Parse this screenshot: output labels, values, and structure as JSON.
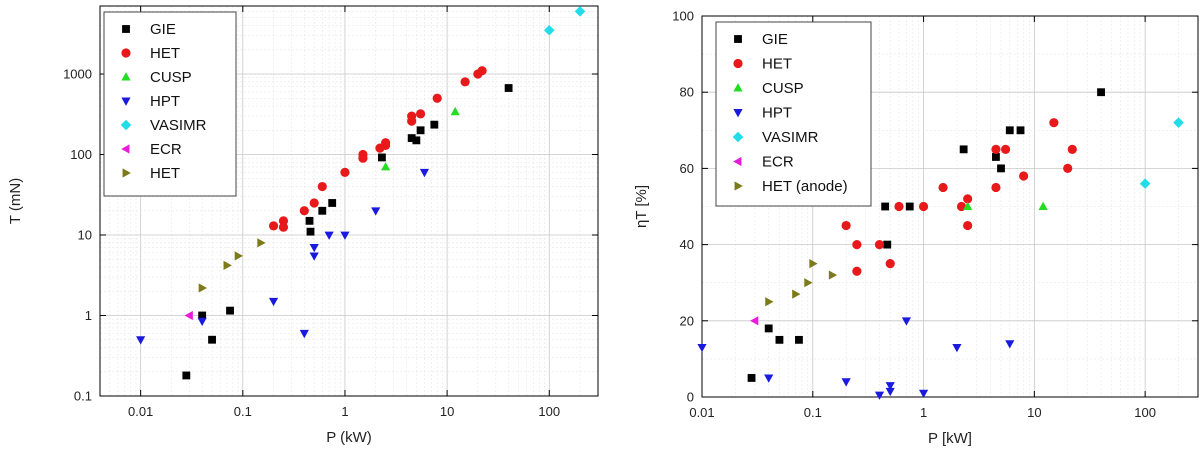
{
  "chart_data": [
    {
      "type": "scatter",
      "x_scale": "log",
      "y_scale": "log",
      "xlabel": "P (kW)",
      "ylabel": "T (mN)",
      "xlim": [
        0.004,
        300
      ],
      "ylim": [
        0.1,
        7000
      ],
      "x_ticks": [
        {
          "v": 0.01,
          "label": "0.01"
        },
        {
          "v": 0.1,
          "label": "0.1"
        },
        {
          "v": 1,
          "label": "1"
        },
        {
          "v": 10,
          "label": "10"
        },
        {
          "v": 100,
          "label": "100"
        }
      ],
      "y_ticks": [
        {
          "v": 0.1,
          "label": "0.1"
        },
        {
          "v": 1,
          "label": "1"
        },
        {
          "v": 10,
          "label": "10"
        },
        {
          "v": 100,
          "label": "100"
        },
        {
          "v": 1000,
          "label": "1000"
        }
      ],
      "legend_position": "top-left",
      "series": [
        {
          "name": "GIE",
          "marker": "square",
          "color": "#000000",
          "points": [
            [
              0.028,
              0.18
            ],
            [
              0.04,
              1.0
            ],
            [
              0.05,
              0.5
            ],
            [
              0.075,
              1.15
            ],
            [
              0.45,
              15
            ],
            [
              0.46,
              11
            ],
            [
              0.6,
              20
            ],
            [
              0.75,
              25
            ],
            [
              2.3,
              92
            ],
            [
              4.5,
              160
            ],
            [
              5,
              150
            ],
            [
              5.5,
              200
            ],
            [
              7.5,
              235
            ],
            [
              40,
              670
            ]
          ]
        },
        {
          "name": "HET",
          "marker": "circle",
          "color": "#e8191b",
          "points": [
            [
              0.2,
              13
            ],
            [
              0.25,
              15
            ],
            [
              0.25,
              12.5
            ],
            [
              0.4,
              20
            ],
            [
              0.5,
              25
            ],
            [
              0.6,
              40
            ],
            [
              1,
              60
            ],
            [
              1.5,
              90
            ],
            [
              1.5,
              100
            ],
            [
              2.2,
              120
            ],
            [
              2.5,
              140
            ],
            [
              2.5,
              130
            ],
            [
              4.5,
              260
            ],
            [
              4.5,
              300
            ],
            [
              5.5,
              320
            ],
            [
              8,
              500
            ],
            [
              15,
              800
            ],
            [
              20,
              1000
            ],
            [
              22,
              1100
            ]
          ]
        },
        {
          "name": "CUSP",
          "marker": "triangle-up",
          "color": "#22dd22",
          "points": [
            [
              2.5,
              70
            ],
            [
              12,
              340
            ]
          ]
        },
        {
          "name": "HPT",
          "marker": "triangle-down",
          "color": "#1a1adf",
          "points": [
            [
              0.01,
              0.5
            ],
            [
              0.04,
              0.85
            ],
            [
              0.2,
              1.5
            ],
            [
              0.4,
              0.6
            ],
            [
              0.5,
              5.5
            ],
            [
              0.5,
              7
            ],
            [
              0.7,
              10
            ],
            [
              1,
              10
            ],
            [
              2,
              20
            ],
            [
              6,
              60
            ]
          ]
        },
        {
          "name": "VASIMR",
          "marker": "diamond",
          "color": "#22dde8",
          "points": [
            [
              100,
              3500
            ],
            [
              200,
              6000
            ]
          ]
        },
        {
          "name": "ECR",
          "marker": "triangle-left",
          "color": "#e81cd8",
          "points": [
            [
              0.03,
              1.0
            ]
          ]
        },
        {
          "name": "HET",
          "marker": "triangle-right",
          "color": "#7d7a1a",
          "points": [
            [
              0.04,
              2.2
            ],
            [
              0.07,
              4.2
            ],
            [
              0.09,
              5.5
            ],
            [
              0.15,
              8
            ]
          ]
        }
      ]
    },
    {
      "type": "scatter",
      "x_scale": "log",
      "y_scale": "linear",
      "xlabel": "P [kW]",
      "ylabel": "ηT [%]",
      "xlim": [
        0.01,
        300
      ],
      "ylim": [
        0,
        100
      ],
      "x_ticks": [
        {
          "v": 0.01,
          "label": "0.01"
        },
        {
          "v": 0.1,
          "label": "0.1"
        },
        {
          "v": 1,
          "label": "1"
        },
        {
          "v": 10,
          "label": "10"
        },
        {
          "v": 100,
          "label": "100"
        }
      ],
      "y_ticks": [
        {
          "v": 0,
          "label": "0"
        },
        {
          "v": 20,
          "label": "20"
        },
        {
          "v": 40,
          "label": "40"
        },
        {
          "v": 60,
          "label": "60"
        },
        {
          "v": 80,
          "label": "80"
        },
        {
          "v": 100,
          "label": "100"
        }
      ],
      "legend_position": "top-left",
      "series": [
        {
          "name": "GIE",
          "marker": "square",
          "color": "#000000",
          "points": [
            [
              0.028,
              5
            ],
            [
              0.04,
              18
            ],
            [
              0.05,
              15
            ],
            [
              0.075,
              15
            ],
            [
              0.45,
              50
            ],
            [
              0.47,
              40
            ],
            [
              0.75,
              50
            ],
            [
              2.3,
              65
            ],
            [
              4.5,
              63
            ],
            [
              5,
              60
            ],
            [
              6,
              70
            ],
            [
              7.5,
              70
            ],
            [
              40,
              80
            ]
          ]
        },
        {
          "name": "HET",
          "marker": "circle",
          "color": "#e8191b",
          "points": [
            [
              0.2,
              45
            ],
            [
              0.25,
              40
            ],
            [
              0.25,
              33
            ],
            [
              0.4,
              40
            ],
            [
              0.5,
              35
            ],
            [
              0.6,
              50
            ],
            [
              1,
              50
            ],
            [
              1.5,
              55
            ],
            [
              2.2,
              50
            ],
            [
              2.5,
              52
            ],
            [
              2.5,
              45
            ],
            [
              4.5,
              55
            ],
            [
              4.5,
              65
            ],
            [
              5.5,
              65
            ],
            [
              8,
              58
            ],
            [
              15,
              72
            ],
            [
              20,
              60
            ],
            [
              22,
              65
            ]
          ]
        },
        {
          "name": "CUSP",
          "marker": "triangle-up",
          "color": "#22dd22",
          "points": [
            [
              2.5,
              50
            ],
            [
              12,
              50
            ]
          ]
        },
        {
          "name": "HPT",
          "marker": "triangle-down",
          "color": "#1a1adf",
          "points": [
            [
              0.01,
              13
            ],
            [
              0.04,
              5
            ],
            [
              0.2,
              4
            ],
            [
              0.4,
              0.5
            ],
            [
              0.5,
              3
            ],
            [
              0.5,
              1.5
            ],
            [
              0.7,
              20
            ],
            [
              1,
              1
            ],
            [
              2,
              13
            ],
            [
              6,
              14
            ]
          ]
        },
        {
          "name": "VASIMR",
          "marker": "diamond",
          "color": "#22dde8",
          "points": [
            [
              100,
              56
            ],
            [
              200,
              72
            ]
          ]
        },
        {
          "name": "ECR",
          "marker": "triangle-left",
          "color": "#e81cd8",
          "points": [
            [
              0.03,
              20
            ]
          ]
        },
        {
          "name": "HET (anode)",
          "marker": "triangle-right",
          "color": "#7d7a1a",
          "points": [
            [
              0.04,
              25
            ],
            [
              0.07,
              27
            ],
            [
              0.09,
              30
            ],
            [
              0.1,
              35
            ],
            [
              0.15,
              32
            ]
          ]
        }
      ]
    }
  ]
}
